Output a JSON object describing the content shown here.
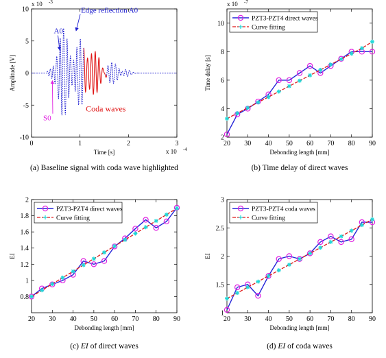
{
  "figure": {
    "captions": [
      {
        "prefix": "(a) Baseline signal with coda wave highlighted",
        "italic": "",
        "suffix": ""
      },
      {
        "prefix": "(b) Time delay of direct waves",
        "italic": "",
        "suffix": ""
      },
      {
        "prefix": "(c) ",
        "italic": "EI",
        "suffix": " of direct waves"
      },
      {
        "prefix": "(d) ",
        "italic": "EI",
        "suffix": " of coda waves"
      }
    ]
  },
  "chart_data": [
    {
      "id": "a",
      "type": "line",
      "xlabel": "Time [s]",
      "ylabel": "Amplitude [V]",
      "x_multiplier": "x 10",
      "x_exponent": "-4",
      "y_multiplier": "x 10",
      "y_exponent": "-3",
      "xlim": [
        0,
        3
      ],
      "ylim": [
        -10,
        10
      ],
      "xticks": [
        0,
        1,
        2,
        3
      ],
      "yticks": [
        -10,
        -5,
        0,
        5,
        10
      ],
      "grid": false,
      "colors": {
        "baseline": "#1f1fd0",
        "coda": "#e01818",
        "s0": "#e020e0"
      },
      "signal": {
        "baseline_segment": [
          0,
          1.08
        ],
        "coda_segment": [
          1.08,
          1.55
        ],
        "tail_segment": [
          1.55,
          2.2
        ]
      },
      "annotations": [
        {
          "text": "A0",
          "x": 0.46,
          "y": 6.2,
          "color": "#1f1fd0",
          "arrow_to": [
            0.58,
            3.6
          ]
        },
        {
          "text": "Edge reflection A0",
          "x": 1.02,
          "y": 9.4,
          "color": "#1f1fd0",
          "arrow_to": [
            0.92,
            6.6
          ]
        },
        {
          "text": "Coda waves",
          "x": 1.12,
          "y": -6.0,
          "color": "#e01818"
        },
        {
          "text": "S0",
          "x": 0.24,
          "y": -7.4,
          "color": "#e020e0",
          "arrow_to": [
            0.43,
            -1.2
          ]
        }
      ]
    },
    {
      "id": "b",
      "type": "line",
      "xlabel": "Debonding length [mm]",
      "ylabel": "Time delay [s]",
      "y_multiplier": "x 10",
      "y_exponent": "-7",
      "xlim": [
        20,
        90
      ],
      "ylim": [
        2,
        11
      ],
      "xticks": [
        20,
        30,
        40,
        50,
        60,
        70,
        80,
        90
      ],
      "yticks": [
        2,
        4,
        6,
        8,
        10
      ],
      "grid": false,
      "legend": "top-left",
      "x": [
        20,
        25,
        30,
        35,
        40,
        45,
        50,
        55,
        60,
        65,
        70,
        75,
        80,
        85,
        90
      ],
      "series": [
        {
          "name": "PZT3-PZT4 direct waves",
          "style": "measured",
          "values": [
            2.2,
            3.6,
            4.0,
            4.5,
            5.0,
            6.0,
            6.0,
            6.5,
            7.0,
            6.5,
            7.0,
            7.5,
            8.0,
            8.0,
            8.0
          ]
        },
        {
          "name": "Curve fitting",
          "style": "fit",
          "values": [
            3.3,
            3.68,
            4.06,
            4.44,
            4.82,
            5.2,
            5.58,
            5.96,
            6.34,
            6.72,
            7.1,
            7.48,
            7.86,
            8.24,
            8.7
          ]
        }
      ]
    },
    {
      "id": "c",
      "type": "line",
      "xlabel": "Debonding length [mm]",
      "ylabel": "EI",
      "xlim": [
        20,
        90
      ],
      "ylim": [
        0.6,
        2.0
      ],
      "xticks": [
        20,
        30,
        40,
        50,
        60,
        70,
        80,
        90
      ],
      "yticks": [
        0.8,
        1.0,
        1.2,
        1.4,
        1.6,
        1.8,
        2.0
      ],
      "ytick_labels": [
        "0.8",
        "1",
        "1.2",
        "1.4",
        "1.6",
        "1.8",
        "2"
      ],
      "grid": false,
      "legend": "top-left",
      "x": [
        20,
        25,
        30,
        35,
        40,
        45,
        50,
        55,
        60,
        65,
        70,
        75,
        80,
        85,
        90
      ],
      "series": [
        {
          "name": "PZT3-PZT4 direct waves",
          "style": "measured",
          "values": [
            0.8,
            0.9,
            0.95,
            1.0,
            1.07,
            1.24,
            1.2,
            1.24,
            1.42,
            1.52,
            1.64,
            1.75,
            1.65,
            1.73,
            1.9
          ]
        },
        {
          "name": "Curve fitting",
          "style": "fit",
          "values": [
            0.8,
            0.878,
            0.956,
            1.034,
            1.112,
            1.19,
            1.268,
            1.346,
            1.424,
            1.502,
            1.58,
            1.658,
            1.736,
            1.814,
            1.892
          ]
        }
      ]
    },
    {
      "id": "d",
      "type": "line",
      "xlabel": "Debonding length [mm]",
      "ylabel": "EI",
      "xlim": [
        20,
        90
      ],
      "ylim": [
        1,
        3
      ],
      "xticks": [
        20,
        30,
        40,
        50,
        60,
        70,
        80,
        90
      ],
      "yticks": [
        1,
        1.5,
        2,
        2.5,
        3
      ],
      "ytick_labels": [
        "1",
        "1.5",
        "2",
        "2.5",
        "3"
      ],
      "grid": false,
      "legend": "top-left",
      "x": [
        20,
        25,
        30,
        35,
        40,
        45,
        50,
        55,
        60,
        65,
        70,
        75,
        80,
        85,
        90
      ],
      "series": [
        {
          "name": "PZT3-PZT4 coda waves",
          "style": "measured",
          "values": [
            1.05,
            1.45,
            1.5,
            1.3,
            1.65,
            1.95,
            2.0,
            1.95,
            2.05,
            2.25,
            2.35,
            2.25,
            2.3,
            2.6,
            2.6
          ]
        },
        {
          "name": "Curve fitting",
          "style": "fit",
          "values": [
            1.25,
            1.35,
            1.45,
            1.55,
            1.65,
            1.75,
            1.85,
            1.95,
            2.05,
            2.15,
            2.25,
            2.35,
            2.45,
            2.55,
            2.65
          ]
        }
      ]
    }
  ]
}
